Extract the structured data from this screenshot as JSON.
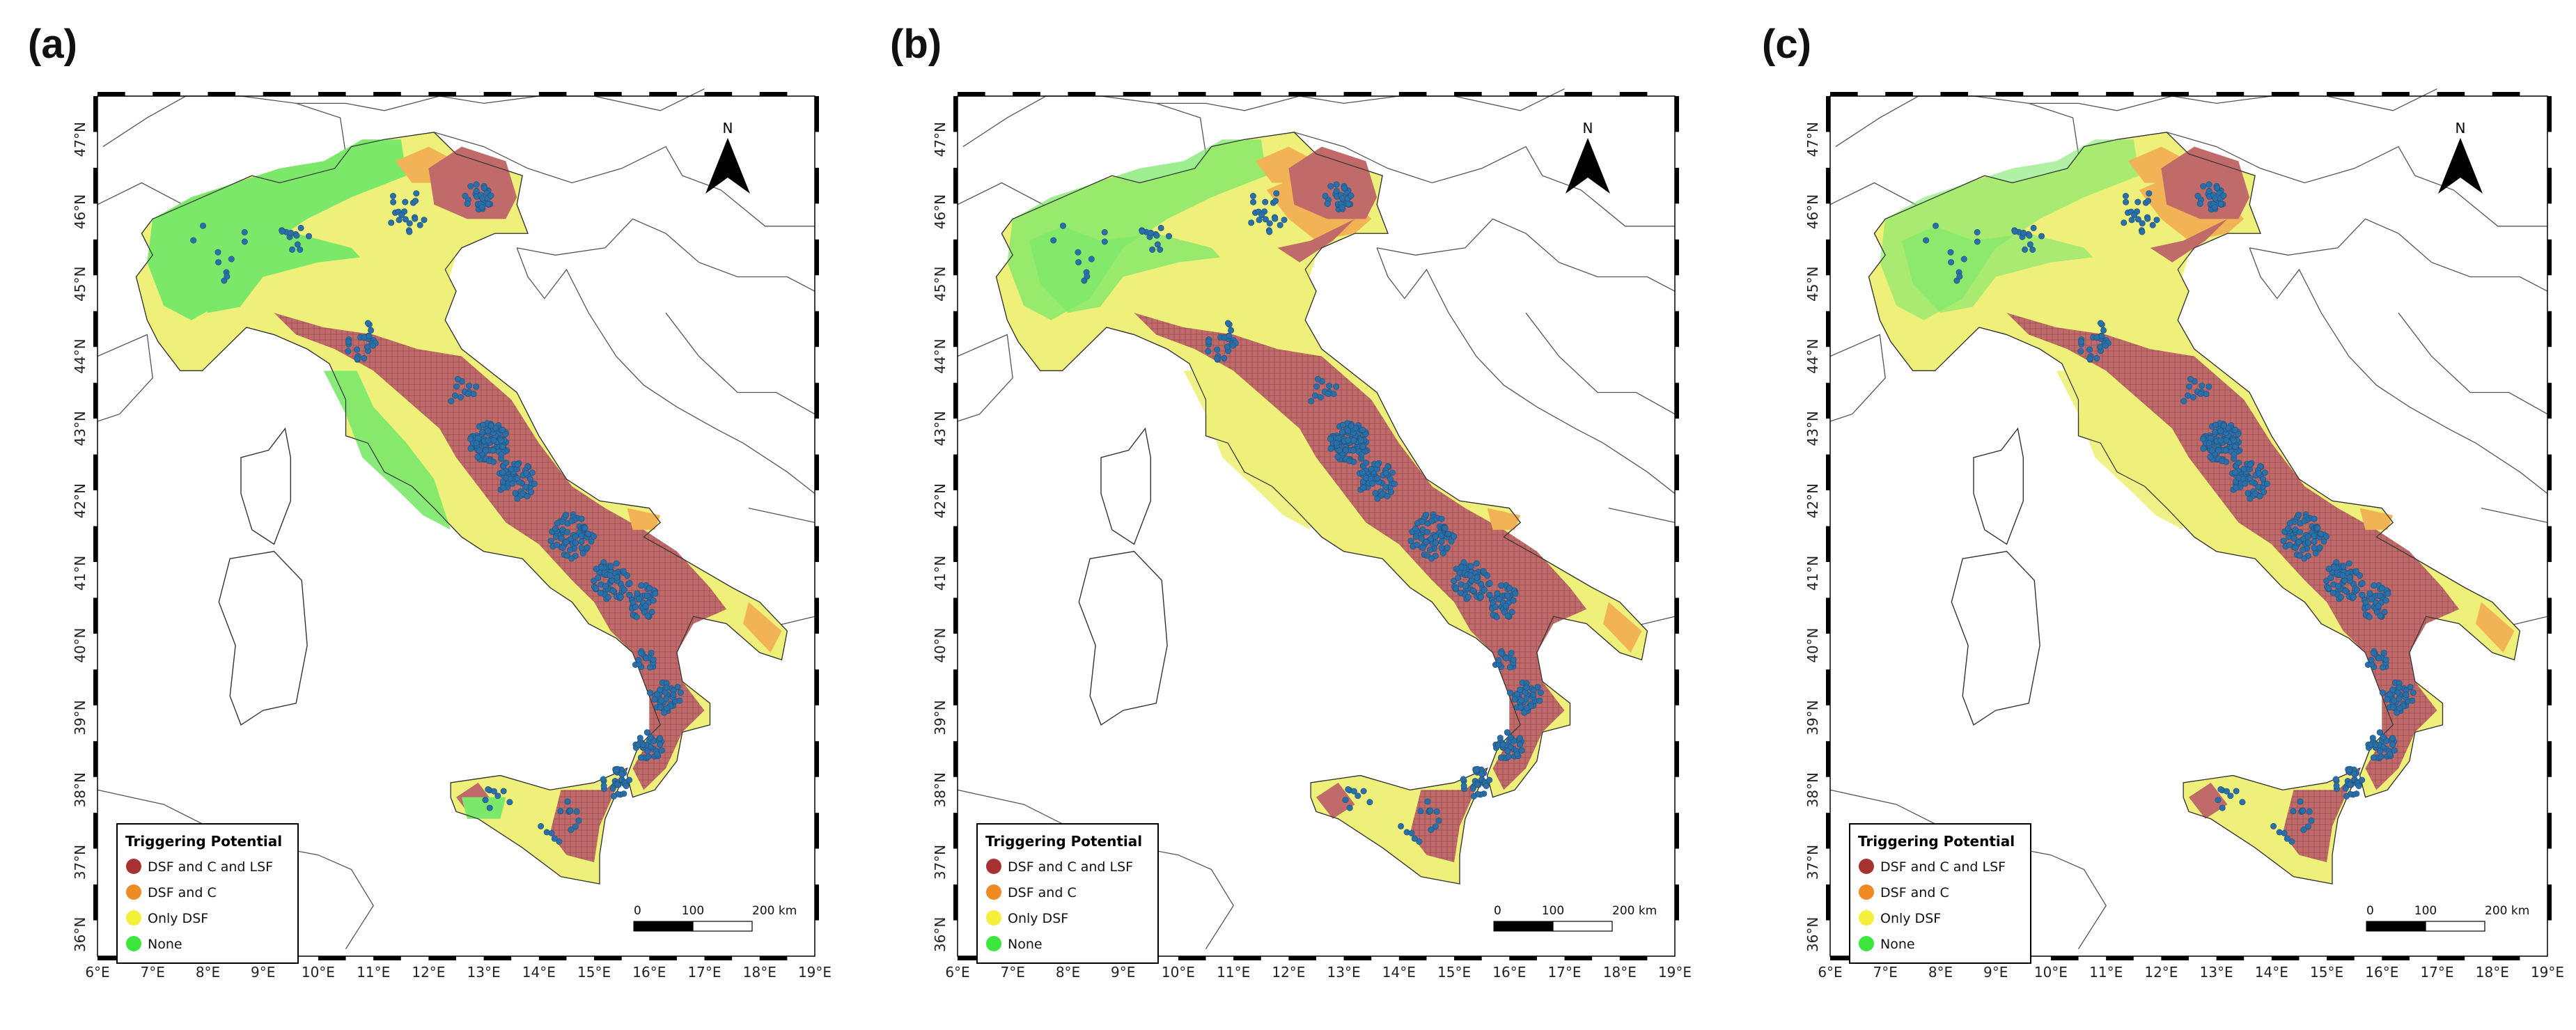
{
  "panels": [
    {
      "label": "(a)",
      "variant": "a"
    },
    {
      "label": "(b)",
      "variant": "b"
    },
    {
      "label": "(c)",
      "variant": "c"
    }
  ],
  "map": {
    "lat_labels": [
      "47°N",
      "46°N",
      "45°N",
      "44°N",
      "43°N",
      "42°N",
      "41°N",
      "40°N",
      "39°N",
      "38°N",
      "37°N",
      "36°N"
    ],
    "lon_labels": [
      "6°E",
      "7°E",
      "8°E",
      "9°E",
      "10°E",
      "11°E",
      "12°E",
      "13°E",
      "14°E",
      "15°E",
      "16°E",
      "17°E",
      "18°E",
      "19°E"
    ],
    "north_label": "N",
    "scale_labels": [
      "0",
      "100",
      "200 km"
    ],
    "legend": {
      "title": "Triggering Potential",
      "items": [
        {
          "label": "DSF and C and LSF",
          "color": "#a83232"
        },
        {
          "label": "DSF and C",
          "color": "#f08a24"
        },
        {
          "label": "Only DSF",
          "color": "#f5ef3c"
        },
        {
          "label": "None",
          "color": "#3ce63c"
        }
      ]
    }
  },
  "colors": {
    "dsf_c_lsf_fill": "#c06a6a",
    "dsf_c_fill": "#f2b256",
    "only_dsf_fill": "#eef07a",
    "none_fill": "#7be86a",
    "landslide_dot": "#2a6fa8",
    "coastline": "#333333"
  }
}
